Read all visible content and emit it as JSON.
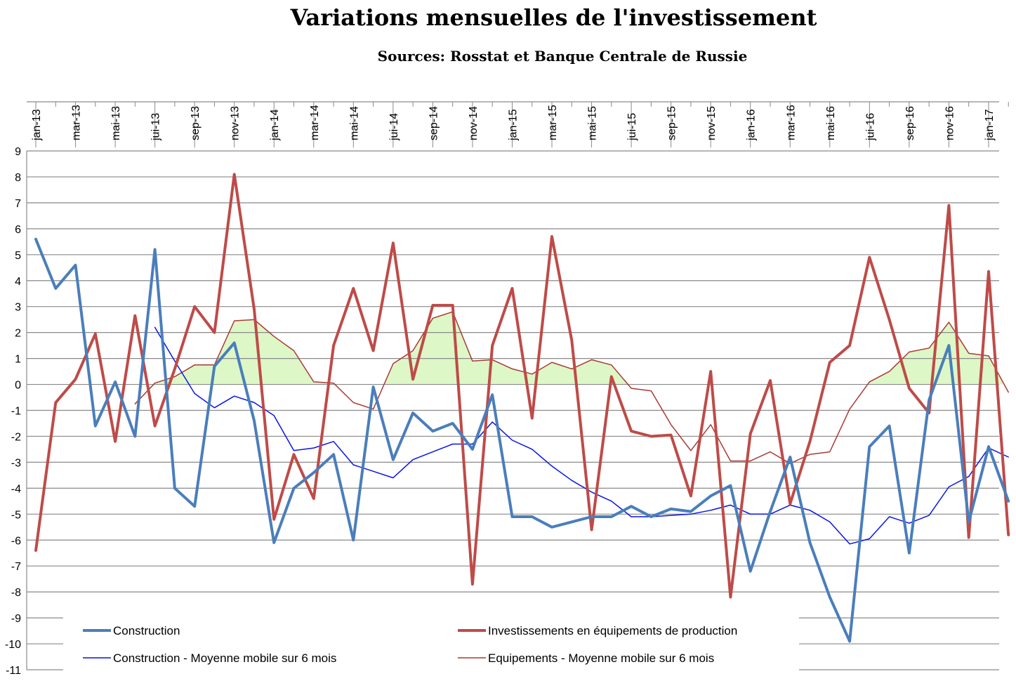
{
  "chart_data": {
    "type": "line",
    "title": "Variations mensuelles de l'investissement",
    "subtitle": "Sources: Rosstat et Banque Centrale de Russie",
    "xlabel": "",
    "ylabel": "",
    "ylim": [
      -11,
      9
    ],
    "y_ticks": [
      9,
      8,
      7,
      6,
      5,
      4,
      3,
      2,
      1,
      0,
      -1,
      -2,
      -3,
      -4,
      -5,
      -6,
      -7,
      -8,
      -9,
      -10,
      -11
    ],
    "x_tick_labels": [
      "jan-13",
      "mar-13",
      "mai-13",
      "jui-13",
      "sep-13",
      "nov-13",
      "jan-14",
      "mar-14",
      "mai-14",
      "jui-14",
      "sep-14",
      "nov-14",
      "jan-15",
      "mar-15",
      "mai-15",
      "jui-15",
      "sep-15",
      "nov-15",
      "jan-16",
      "mar-16",
      "mai-16",
      "jui-16",
      "sep-16",
      "nov-16",
      "jan-17"
    ],
    "months": [
      "jan-13",
      "fév-13",
      "mar-13",
      "avr-13",
      "mai-13",
      "jun-13",
      "jui-13",
      "aoû-13",
      "sep-13",
      "oct-13",
      "nov-13",
      "déc-13",
      "jan-14",
      "fév-14",
      "mar-14",
      "avr-14",
      "mai-14",
      "jun-14",
      "jui-14",
      "aoû-14",
      "sep-14",
      "oct-14",
      "nov-14",
      "déc-14",
      "jan-15",
      "fév-15",
      "mar-15",
      "avr-15",
      "mai-15",
      "jun-15",
      "jui-15",
      "aoû-15",
      "sep-15",
      "oct-15",
      "nov-15",
      "déc-15",
      "jan-16",
      "fév-16",
      "mar-16",
      "avr-16",
      "mai-16",
      "jun-16",
      "jui-16",
      "aoû-16",
      "sep-16",
      "oct-16",
      "nov-16",
      "déc-16",
      "jan-17",
      "fév-17"
    ],
    "grid": true,
    "legend_position": "bottom",
    "fill_color": "#ddf7c6",
    "series": [
      {
        "name": "Construction",
        "color": "#4a7ebb",
        "width": 4,
        "values": [
          5.6,
          3.7,
          4.6,
          -1.6,
          0.1,
          -2.0,
          5.2,
          -4.0,
          -4.7,
          0.7,
          1.6,
          -1.4,
          -6.1,
          -4.0,
          -3.4,
          -2.7,
          -6.0,
          -0.1,
          -2.9,
          -1.1,
          -1.8,
          -1.5,
          -2.5,
          -0.4,
          -5.1,
          -5.1,
          -5.5,
          -5.3,
          -5.1,
          -5.1,
          -4.7,
          -5.1,
          -4.8,
          -4.9,
          -4.3,
          -3.9,
          -7.2,
          -4.9,
          -2.8,
          -6.1,
          -8.2,
          -9.9,
          -2.4,
          -1.6,
          -6.5,
          -0.6,
          1.5,
          -5.3,
          -2.4,
          -4.5
        ]
      },
      {
        "name": "Investissements en équipements de production",
        "color": "#be4b48",
        "width": 4,
        "values": [
          -6.4,
          -0.7,
          0.2,
          1.95,
          -2.2,
          2.65,
          -1.6,
          0.6,
          3.0,
          2.0,
          8.1,
          2.9,
          -5.2,
          -2.7,
          -4.4,
          1.5,
          3.7,
          1.3,
          5.45,
          0.2,
          3.05,
          3.05,
          -7.7,
          1.5,
          3.7,
          -1.3,
          5.7,
          1.7,
          -5.6,
          0.3,
          -1.8,
          -2.0,
          -1.95,
          -4.3,
          0.5,
          -8.2,
          -1.9,
          0.15,
          -4.6,
          -2.2,
          0.85,
          1.5,
          4.9,
          2.5,
          -0.15,
          -1.1,
          6.9,
          -5.9,
          4.35,
          -5.8
        ]
      },
      {
        "name": "Construction - Moyenne mobile sur 6 mois",
        "color": "#0a14e6",
        "width": 1.5,
        "start_index": 6,
        "values": [
          2.2,
          0.9,
          -0.35,
          -0.9,
          -0.45,
          -0.7,
          -1.2,
          -2.55,
          -2.45,
          -2.2,
          -3.1,
          -3.35,
          -3.6,
          -2.9,
          -2.6,
          -2.3,
          -2.3,
          -1.45,
          -2.15,
          -2.5,
          -3.15,
          -3.7,
          -4.15,
          -4.5,
          -5.1,
          -5.1,
          -5.05,
          -5.0,
          -4.85,
          -4.65,
          -5.0,
          -5.0,
          -4.65,
          -4.85,
          -5.3,
          -6.15,
          -5.95,
          -5.1,
          -5.35,
          -5.05,
          -3.95,
          -3.55,
          -2.45,
          -2.8
        ]
      },
      {
        "name": "Equipements - Moyenne mobile sur 6 mois",
        "color": "#a93a36",
        "width": 1.5,
        "start_index": 5,
        "values": [
          -0.75,
          0.05,
          0.3,
          0.75,
          0.75,
          2.45,
          2.5,
          1.85,
          1.3,
          0.1,
          0.05,
          -0.7,
          -0.95,
          0.8,
          1.3,
          2.55,
          2.8,
          0.9,
          0.95,
          0.6,
          0.4,
          0.85,
          0.6,
          0.95,
          0.75,
          -0.15,
          -0.25,
          -1.55,
          -2.55,
          -1.55,
          -2.95,
          -2.95,
          -2.6,
          -3.05,
          -2.7,
          -2.6,
          -0.95,
          0.1,
          0.5,
          1.25,
          1.4,
          2.4,
          1.2,
          1.1,
          -0.3
        ]
      }
    ]
  }
}
